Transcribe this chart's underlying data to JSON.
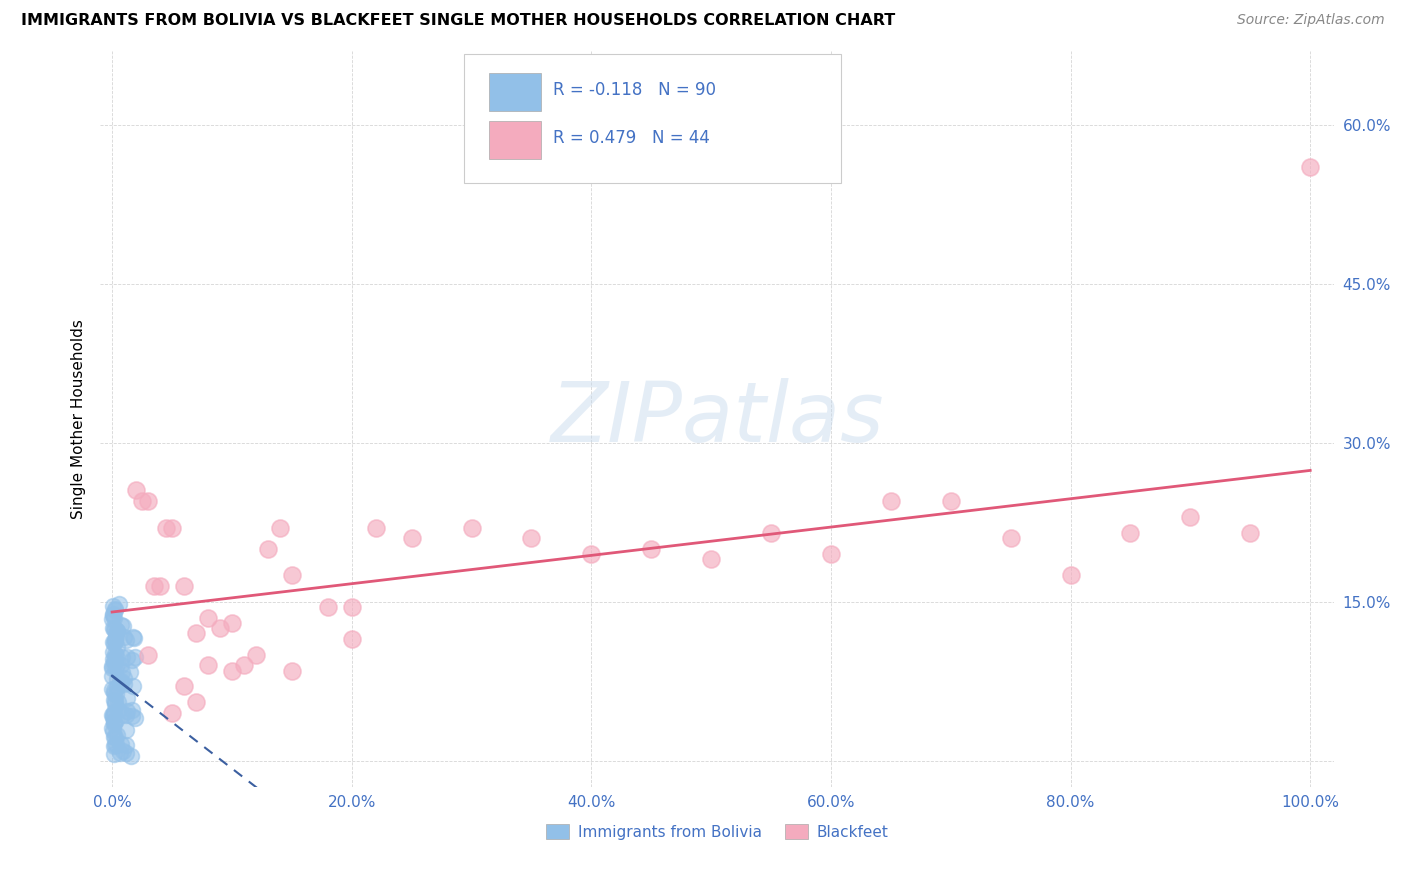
{
  "title": "IMMIGRANTS FROM BOLIVIA VS BLACKFEET SINGLE MOTHER HOUSEHOLDS CORRELATION CHART",
  "source": "Source: ZipAtlas.com",
  "ylabel": "Single Mother Households",
  "xlim": [
    -0.01,
    1.02
  ],
  "ylim": [
    -0.025,
    0.67
  ],
  "blue_color": "#92C0E8",
  "pink_color": "#F4ABBE",
  "blue_line_color": "#3B5FA0",
  "pink_line_color": "#E05878",
  "watermark_text": "ZIPatlas",
  "legend_bottom_blue": "Immigrants from Bolivia",
  "legend_bottom_pink": "Blackfeet",
  "blue_R": -0.118,
  "pink_R": 0.479,
  "blue_N": 90,
  "pink_N": 44,
  "pink_scatter_x": [
    0.02,
    0.025,
    0.03,
    0.035,
    0.04,
    0.045,
    0.05,
    0.06,
    0.07,
    0.08,
    0.09,
    0.1,
    0.11,
    0.12,
    0.13,
    0.14,
    0.15,
    0.18,
    0.2,
    0.22,
    0.25,
    0.3,
    0.35,
    0.4,
    0.45,
    0.5,
    0.55,
    0.6,
    0.65,
    0.7,
    0.75,
    0.8,
    0.85,
    0.9,
    0.95,
    1.0,
    0.03,
    0.05,
    0.07,
    0.1,
    0.15,
    0.2,
    0.06,
    0.08
  ],
  "pink_scatter_y": [
    0.255,
    0.245,
    0.245,
    0.165,
    0.165,
    0.22,
    0.22,
    0.165,
    0.12,
    0.135,
    0.125,
    0.13,
    0.09,
    0.1,
    0.2,
    0.22,
    0.175,
    0.145,
    0.145,
    0.22,
    0.21,
    0.22,
    0.21,
    0.195,
    0.2,
    0.19,
    0.215,
    0.195,
    0.245,
    0.245,
    0.21,
    0.175,
    0.215,
    0.23,
    0.215,
    0.56,
    0.1,
    0.045,
    0.055,
    0.085,
    0.085,
    0.115,
    0.07,
    0.09
  ],
  "xtick_vals": [
    0.0,
    0.2,
    0.4,
    0.6,
    0.8,
    1.0
  ],
  "xtick_labels": [
    "0.0%",
    "20.0%",
    "40.0%",
    "60.0%",
    "80.0%",
    "100.0%"
  ],
  "ytick_vals": [
    0.0,
    0.15,
    0.3,
    0.45,
    0.6
  ],
  "ytick_labels": [
    "",
    "15.0%",
    "30.0%",
    "45.0%",
    "60.0%"
  ]
}
